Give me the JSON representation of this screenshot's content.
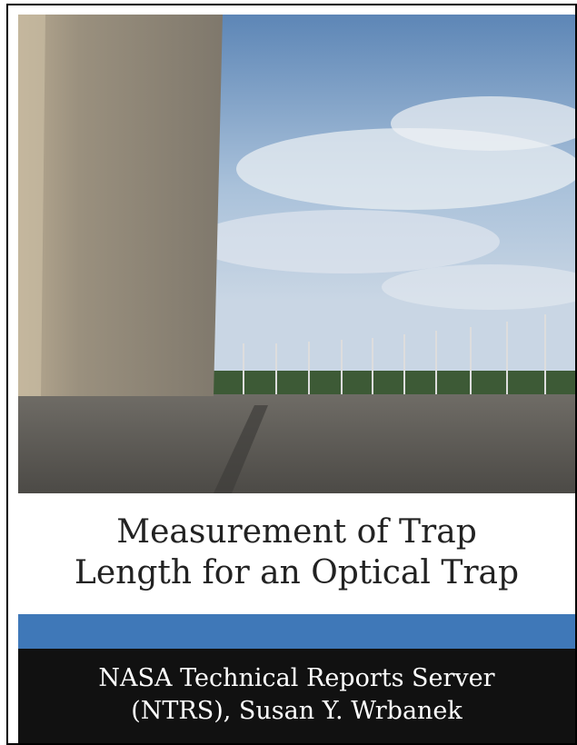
{
  "cover": {
    "title_lines": [
      "Measurement of Trap",
      "Length for an Optical Trap"
    ],
    "author_lines": [
      "NASA Technical Reports Server",
      "(NTRS), Susan Y. Wrbanek"
    ]
  }
}
